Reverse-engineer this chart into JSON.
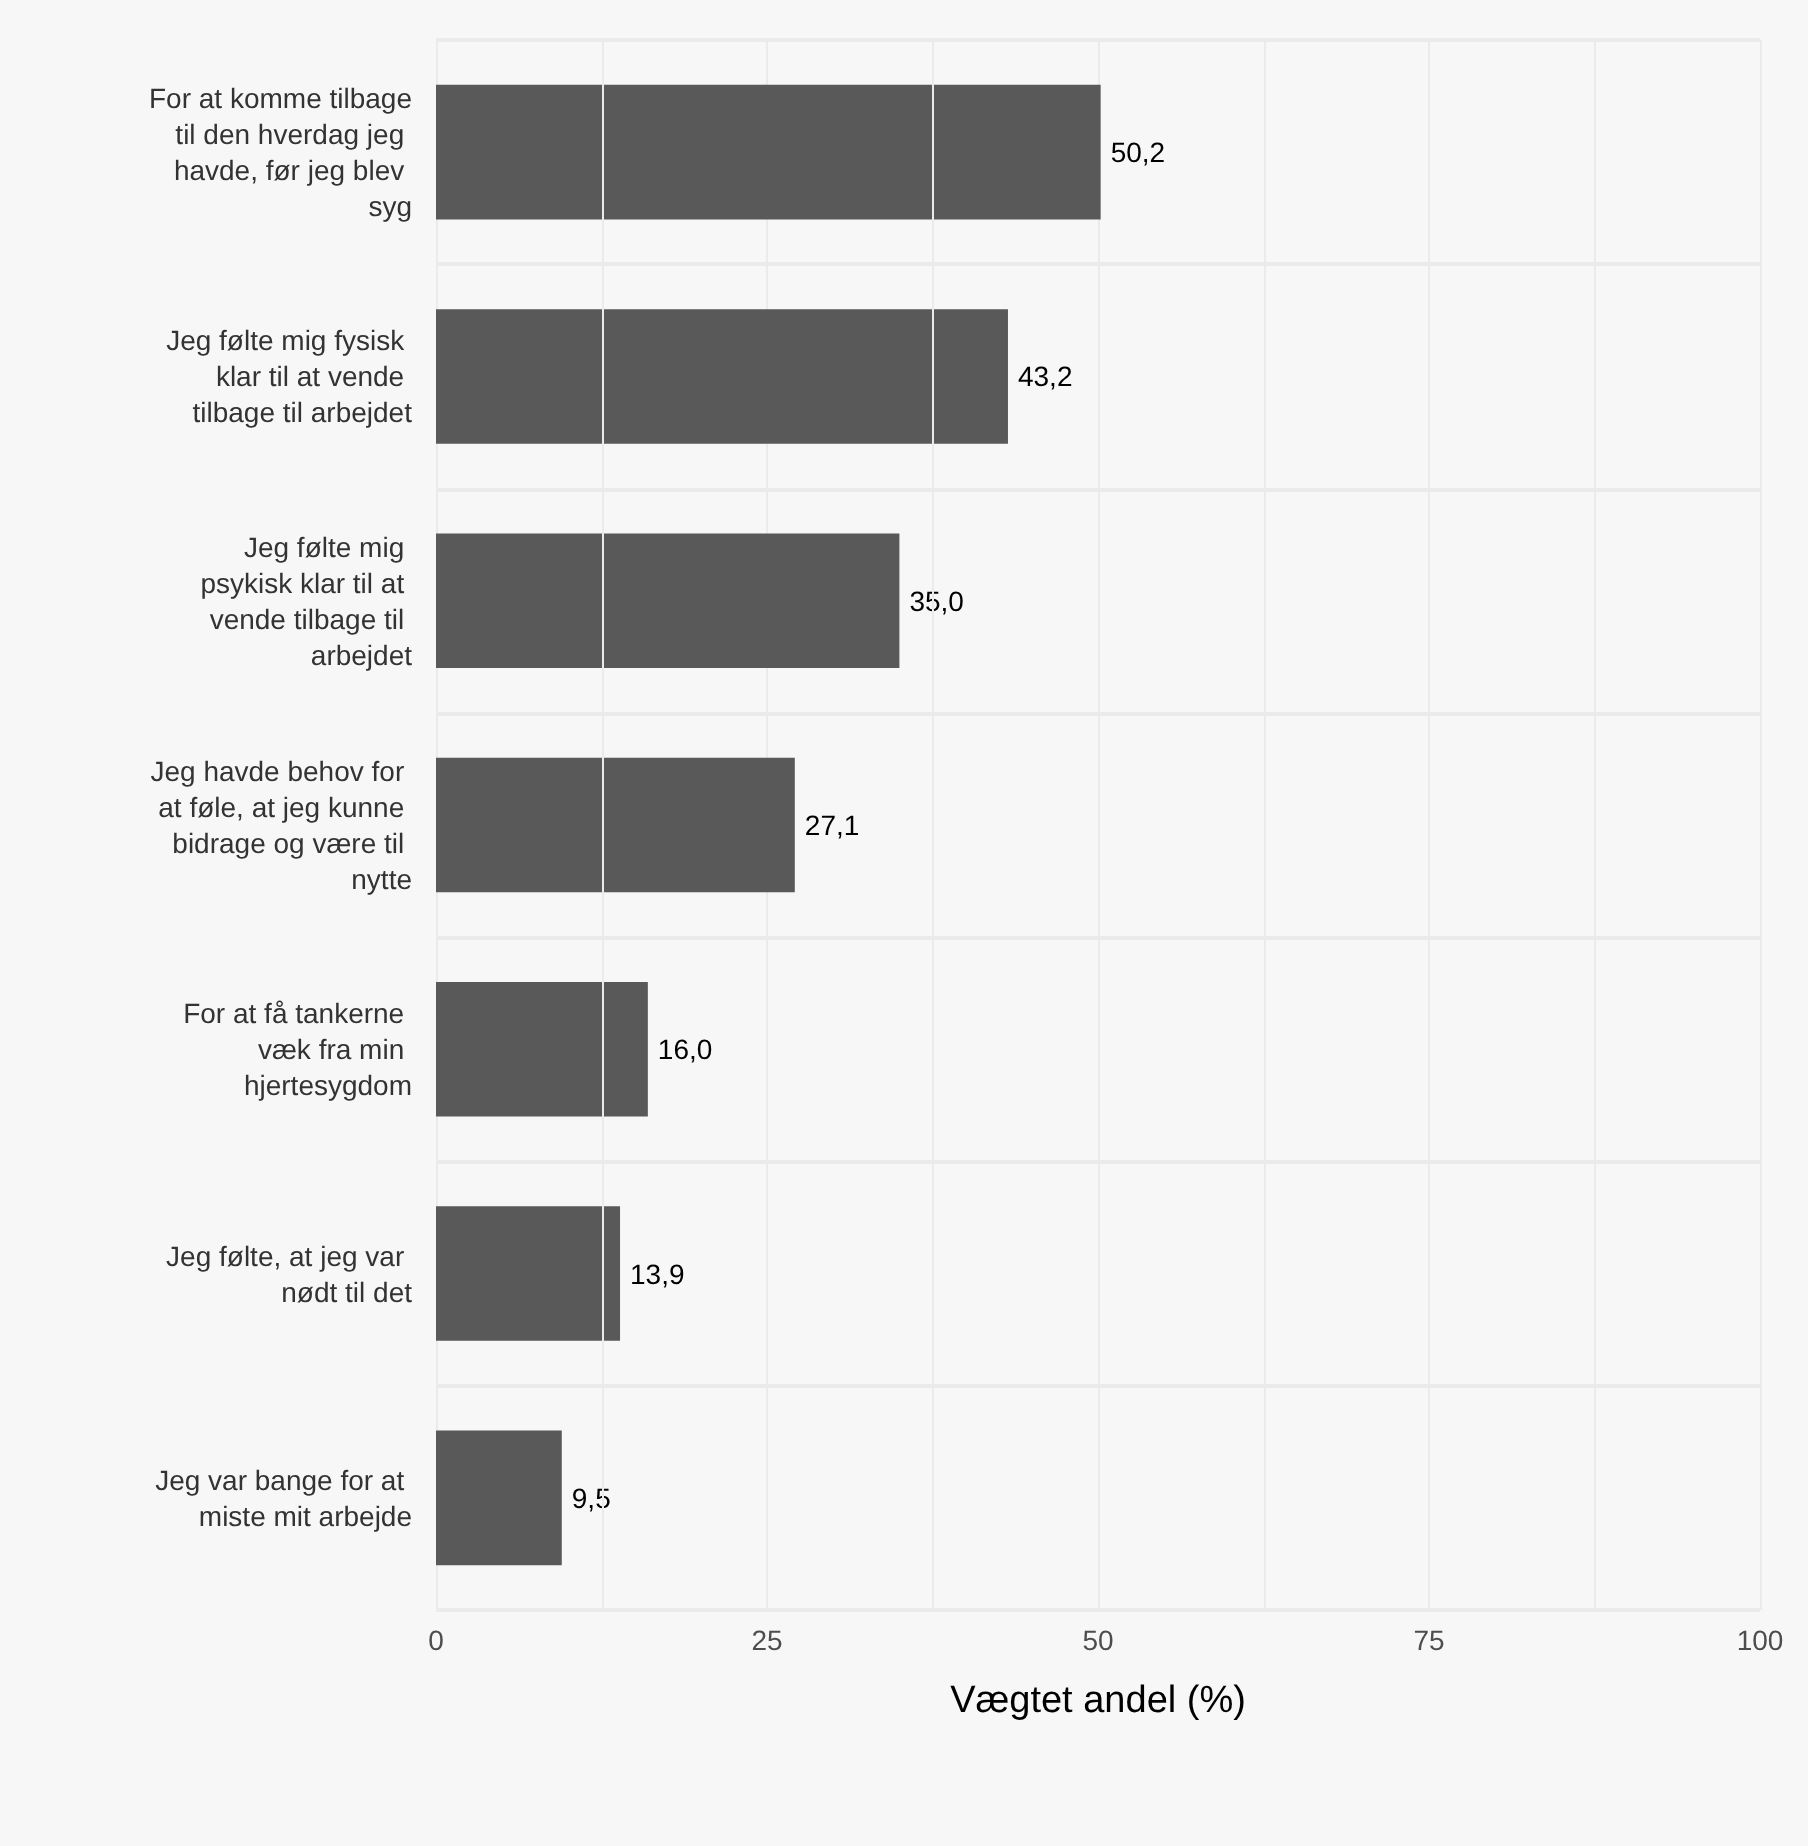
{
  "chart_data": {
    "type": "bar",
    "orientation": "horizontal",
    "xlabel": "Vægtet andel (%)",
    "categories": [
      "For at komme tilbage til den hverdag jeg havde, før jeg blev syg",
      "Jeg følte mig fysisk klar til at vende tilbage til arbejdet",
      "Jeg følte mig psykisk klar til at vende tilbage til arbejdet",
      "Jeg havde behov for at føle, at jeg kunne bidrage og være til nytte",
      "For at få tankerne væk fra min hjertesygdom",
      "Jeg følte, at jeg var nødt til det",
      "Jeg var bange for at miste mit arbejde"
    ],
    "values": [
      50.2,
      43.2,
      35.0,
      27.1,
      16.0,
      13.9,
      9.5
    ],
    "value_labels": [
      "50,2",
      "43,2",
      "35,0",
      "27,1",
      "16,0",
      "13,9",
      "9,5"
    ],
    "color": "#595959",
    "xlim": [
      0,
      100
    ],
    "xticks": [
      0,
      25,
      50,
      75,
      100
    ],
    "grid": true
  }
}
